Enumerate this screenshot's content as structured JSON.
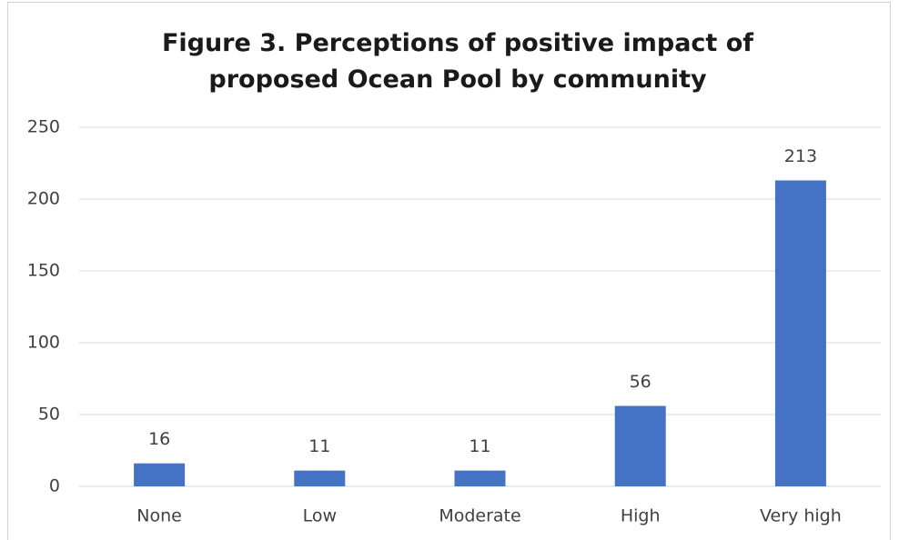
{
  "chart_data": {
    "type": "bar",
    "title": "Figure 3. Perceptions of positive impact of proposed Ocean Pool by community",
    "categories": [
      "None",
      "Low",
      "Moderate",
      "High",
      "Very high"
    ],
    "values": [
      16,
      11,
      11,
      56,
      213
    ],
    "color": "#4472c4",
    "ylim": [
      0,
      250
    ],
    "yticks": [
      0,
      50,
      100,
      150,
      200,
      250
    ],
    "grid": true
  }
}
